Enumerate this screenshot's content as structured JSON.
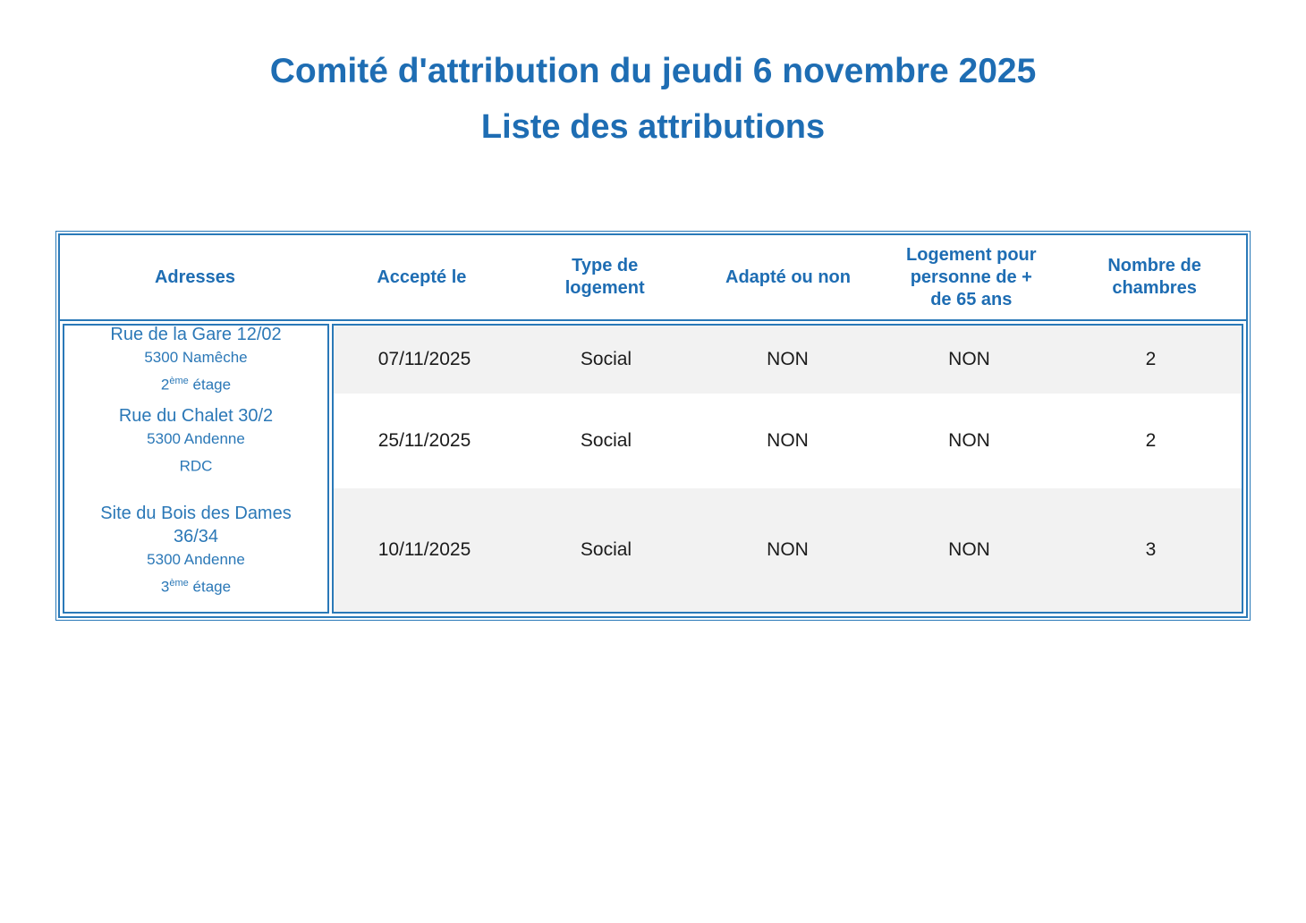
{
  "page": {
    "title": "Comité d'attribution du jeudi 6 novembre 2025",
    "subtitle": "Liste des attributions"
  },
  "colors": {
    "accent_blue": "#1e6db3",
    "address_blue": "#2b78b7",
    "border_blue": "#2a79b8",
    "stripe_gray": "#f2f2f2",
    "text_black": "#1b1b1b"
  },
  "table": {
    "headers": [
      {
        "label": "Adresses"
      },
      {
        "label": "Accepté le"
      },
      {
        "label": "Type de logement"
      },
      {
        "label": "Adapté ou non"
      },
      {
        "label": "Logement pour personne de + de 65 ans"
      },
      {
        "label": "Nombre de chambres"
      }
    ],
    "rows": [
      {
        "name_line1": "Rue de la Gare 12/02",
        "name_line2": "",
        "city": "5300 Namêche",
        "floor_base": "2",
        "floor_sup": "ème",
        "floor_rest": " étage",
        "accepted_on": "07/11/2025",
        "housing_type": "Social",
        "adapted": "NON",
        "senior_housing": "NON",
        "bedrooms": "2"
      },
      {
        "name_line1": "Rue du Chalet 30/2",
        "name_line2": "",
        "city": "5300 Andenne",
        "floor_base": "RDC",
        "floor_sup": "",
        "floor_rest": "",
        "accepted_on": "25/11/2025",
        "housing_type": "Social",
        "adapted": "NON",
        "senior_housing": "NON",
        "bedrooms": "2"
      },
      {
        "name_line1": "Site du Bois des Dames",
        "name_line2": "36/34",
        "city": "5300 Andenne",
        "floor_base": "3",
        "floor_sup": "ème",
        "floor_rest": " étage",
        "accepted_on": "10/11/2025",
        "housing_type": "Social",
        "adapted": "NON",
        "senior_housing": "NON",
        "bedrooms": "3"
      }
    ]
  }
}
